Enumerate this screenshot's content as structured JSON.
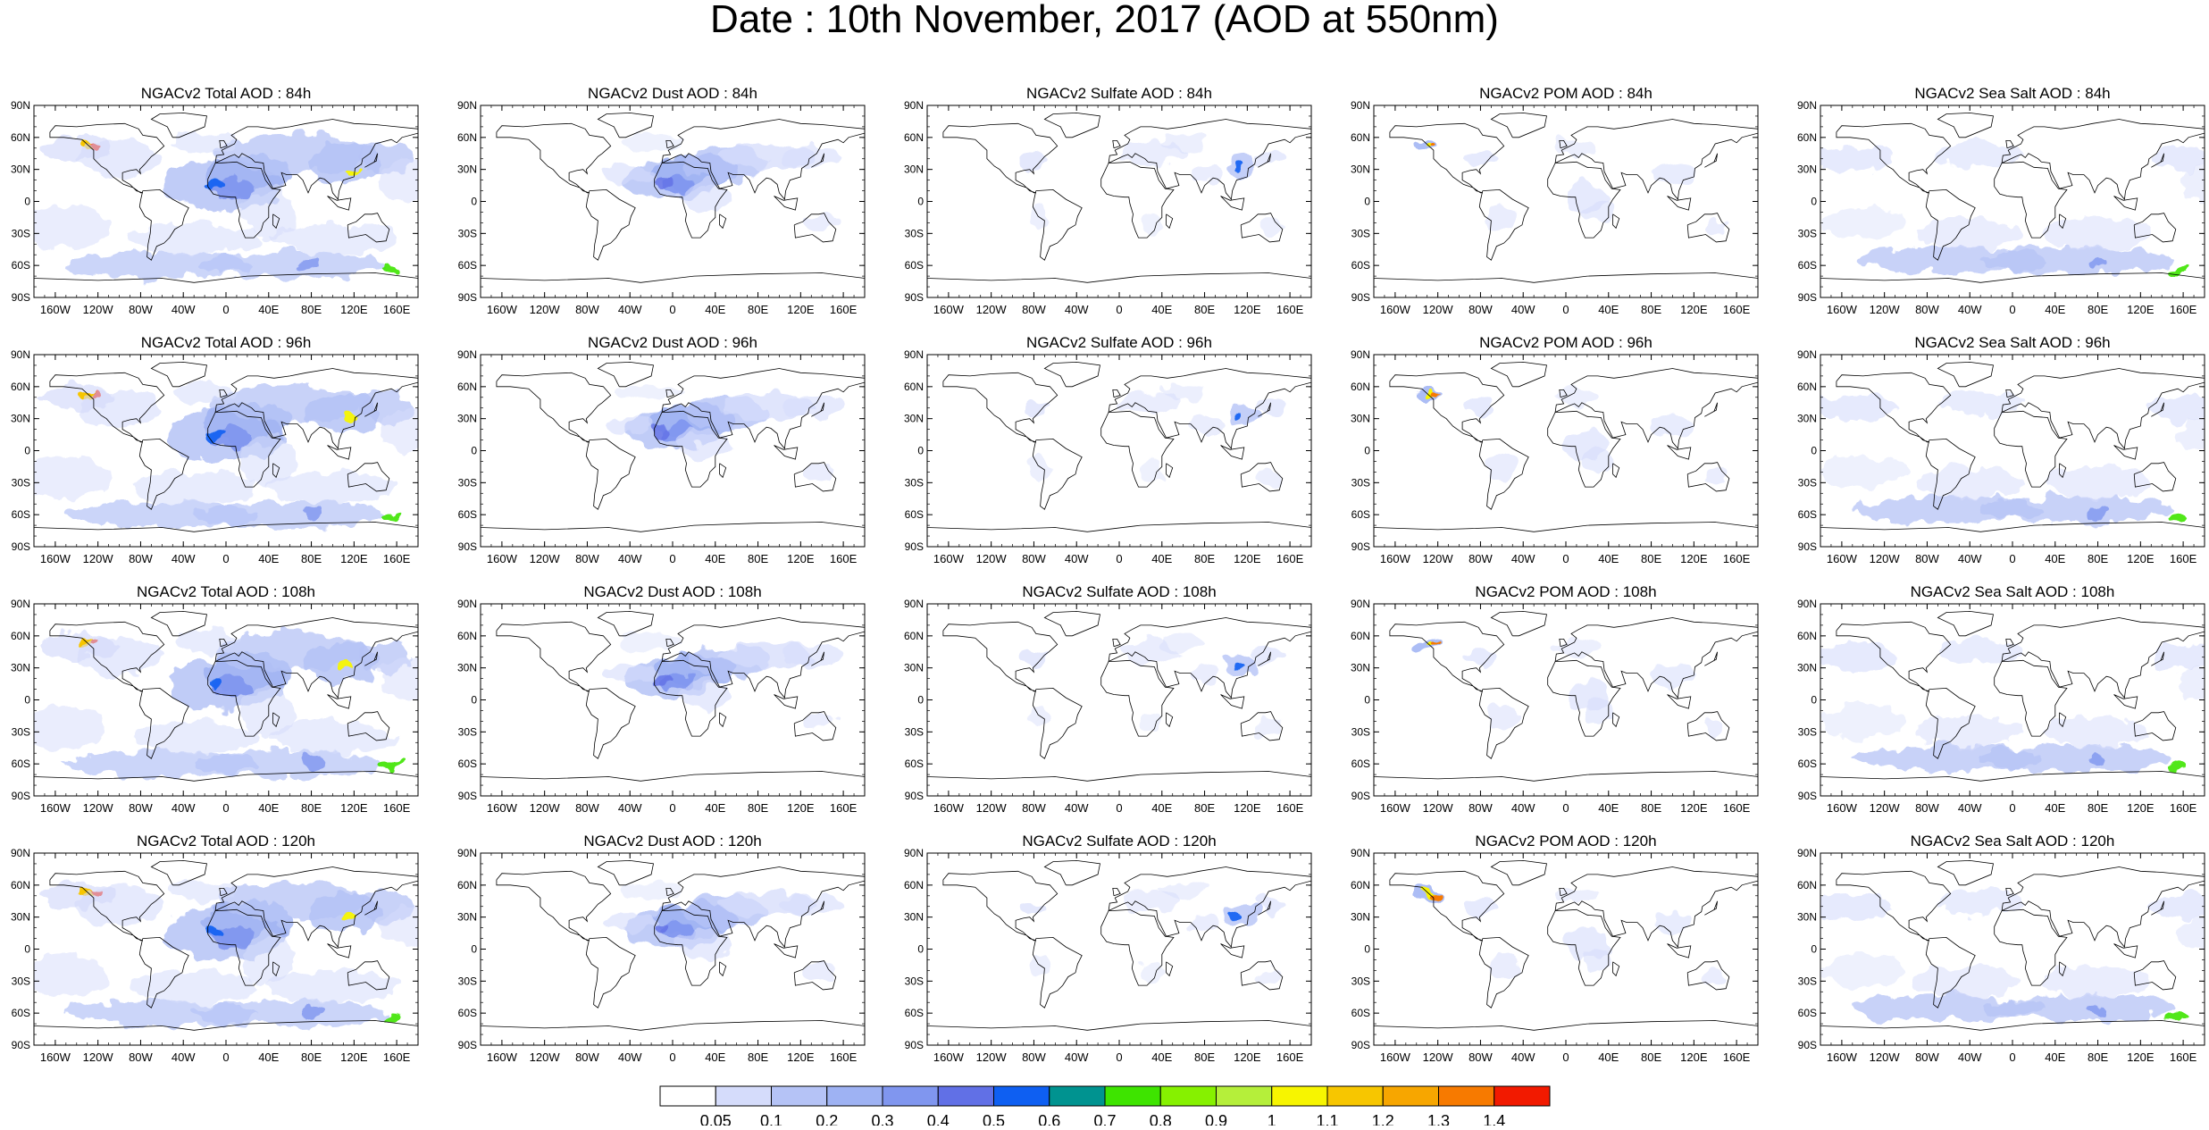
{
  "title": "Date : 10th November, 2017 (AOD at 550nm)",
  "lon_labels": [
    "160W",
    "120W",
    "80W",
    "40W",
    "0",
    "40E",
    "80E",
    "120E",
    "160E"
  ],
  "lat_labels": [
    "90N",
    "60N",
    "30N",
    "0",
    "30S",
    "60S",
    "90S"
  ],
  "panels": [
    {
      "title": "NGACv2 Total AOD : 84h",
      "field": "total"
    },
    {
      "title": "NGACv2 Dust AOD : 84h",
      "field": "dust"
    },
    {
      "title": "NGACv2 Sulfate AOD : 84h",
      "field": "sulfate"
    },
    {
      "title": "NGACv2 POM AOD : 84h",
      "field": "pom"
    },
    {
      "title": "NGACv2 Sea Salt AOD : 84h",
      "field": "seasalt"
    },
    {
      "title": "NGACv2 Total AOD : 96h",
      "field": "total"
    },
    {
      "title": "NGACv2 Dust AOD : 96h",
      "field": "dust"
    },
    {
      "title": "NGACv2 Sulfate AOD : 96h",
      "field": "sulfate"
    },
    {
      "title": "NGACv2 POM AOD : 96h",
      "field": "pom"
    },
    {
      "title": "NGACv2 Sea Salt AOD : 96h",
      "field": "seasalt"
    },
    {
      "title": "NGACv2 Total AOD : 108h",
      "field": "total"
    },
    {
      "title": "NGACv2 Dust AOD : 108h",
      "field": "dust"
    },
    {
      "title": "NGACv2 Sulfate AOD : 108h",
      "field": "sulfate"
    },
    {
      "title": "NGACv2 POM AOD : 108h",
      "field": "pom"
    },
    {
      "title": "NGACv2 Sea Salt AOD : 108h",
      "field": "seasalt"
    },
    {
      "title": "NGACv2 Total AOD : 120h",
      "field": "total"
    },
    {
      "title": "NGACv2 Dust AOD : 120h",
      "field": "dust"
    },
    {
      "title": "NGACv2 Sulfate AOD : 120h",
      "field": "sulfate"
    },
    {
      "title": "NGACv2 POM AOD : 120h",
      "field": "pom"
    },
    {
      "title": "NGACv2 Sea Salt  AOD : 120h",
      "field": "seasalt"
    }
  ],
  "colorbar": {
    "labels": [
      "0.05",
      "0.1",
      "0.2",
      "0.3",
      "0.4",
      "0.5",
      "0.6",
      "0.7",
      "0.8",
      "0.9",
      "1",
      "1.1",
      "1.2",
      "1.3",
      "1.4"
    ],
    "colors": [
      "#ffffff",
      "#d5dcfb",
      "#b5c3f6",
      "#9eb2f3",
      "#8096ef",
      "#6170e6",
      "#0e5ff2",
      "#009390",
      "#3ee400",
      "#86f100",
      "#b5ef3a",
      "#f7f500",
      "#f7c600",
      "#f7a600",
      "#f77a00",
      "#f21a00"
    ]
  }
}
